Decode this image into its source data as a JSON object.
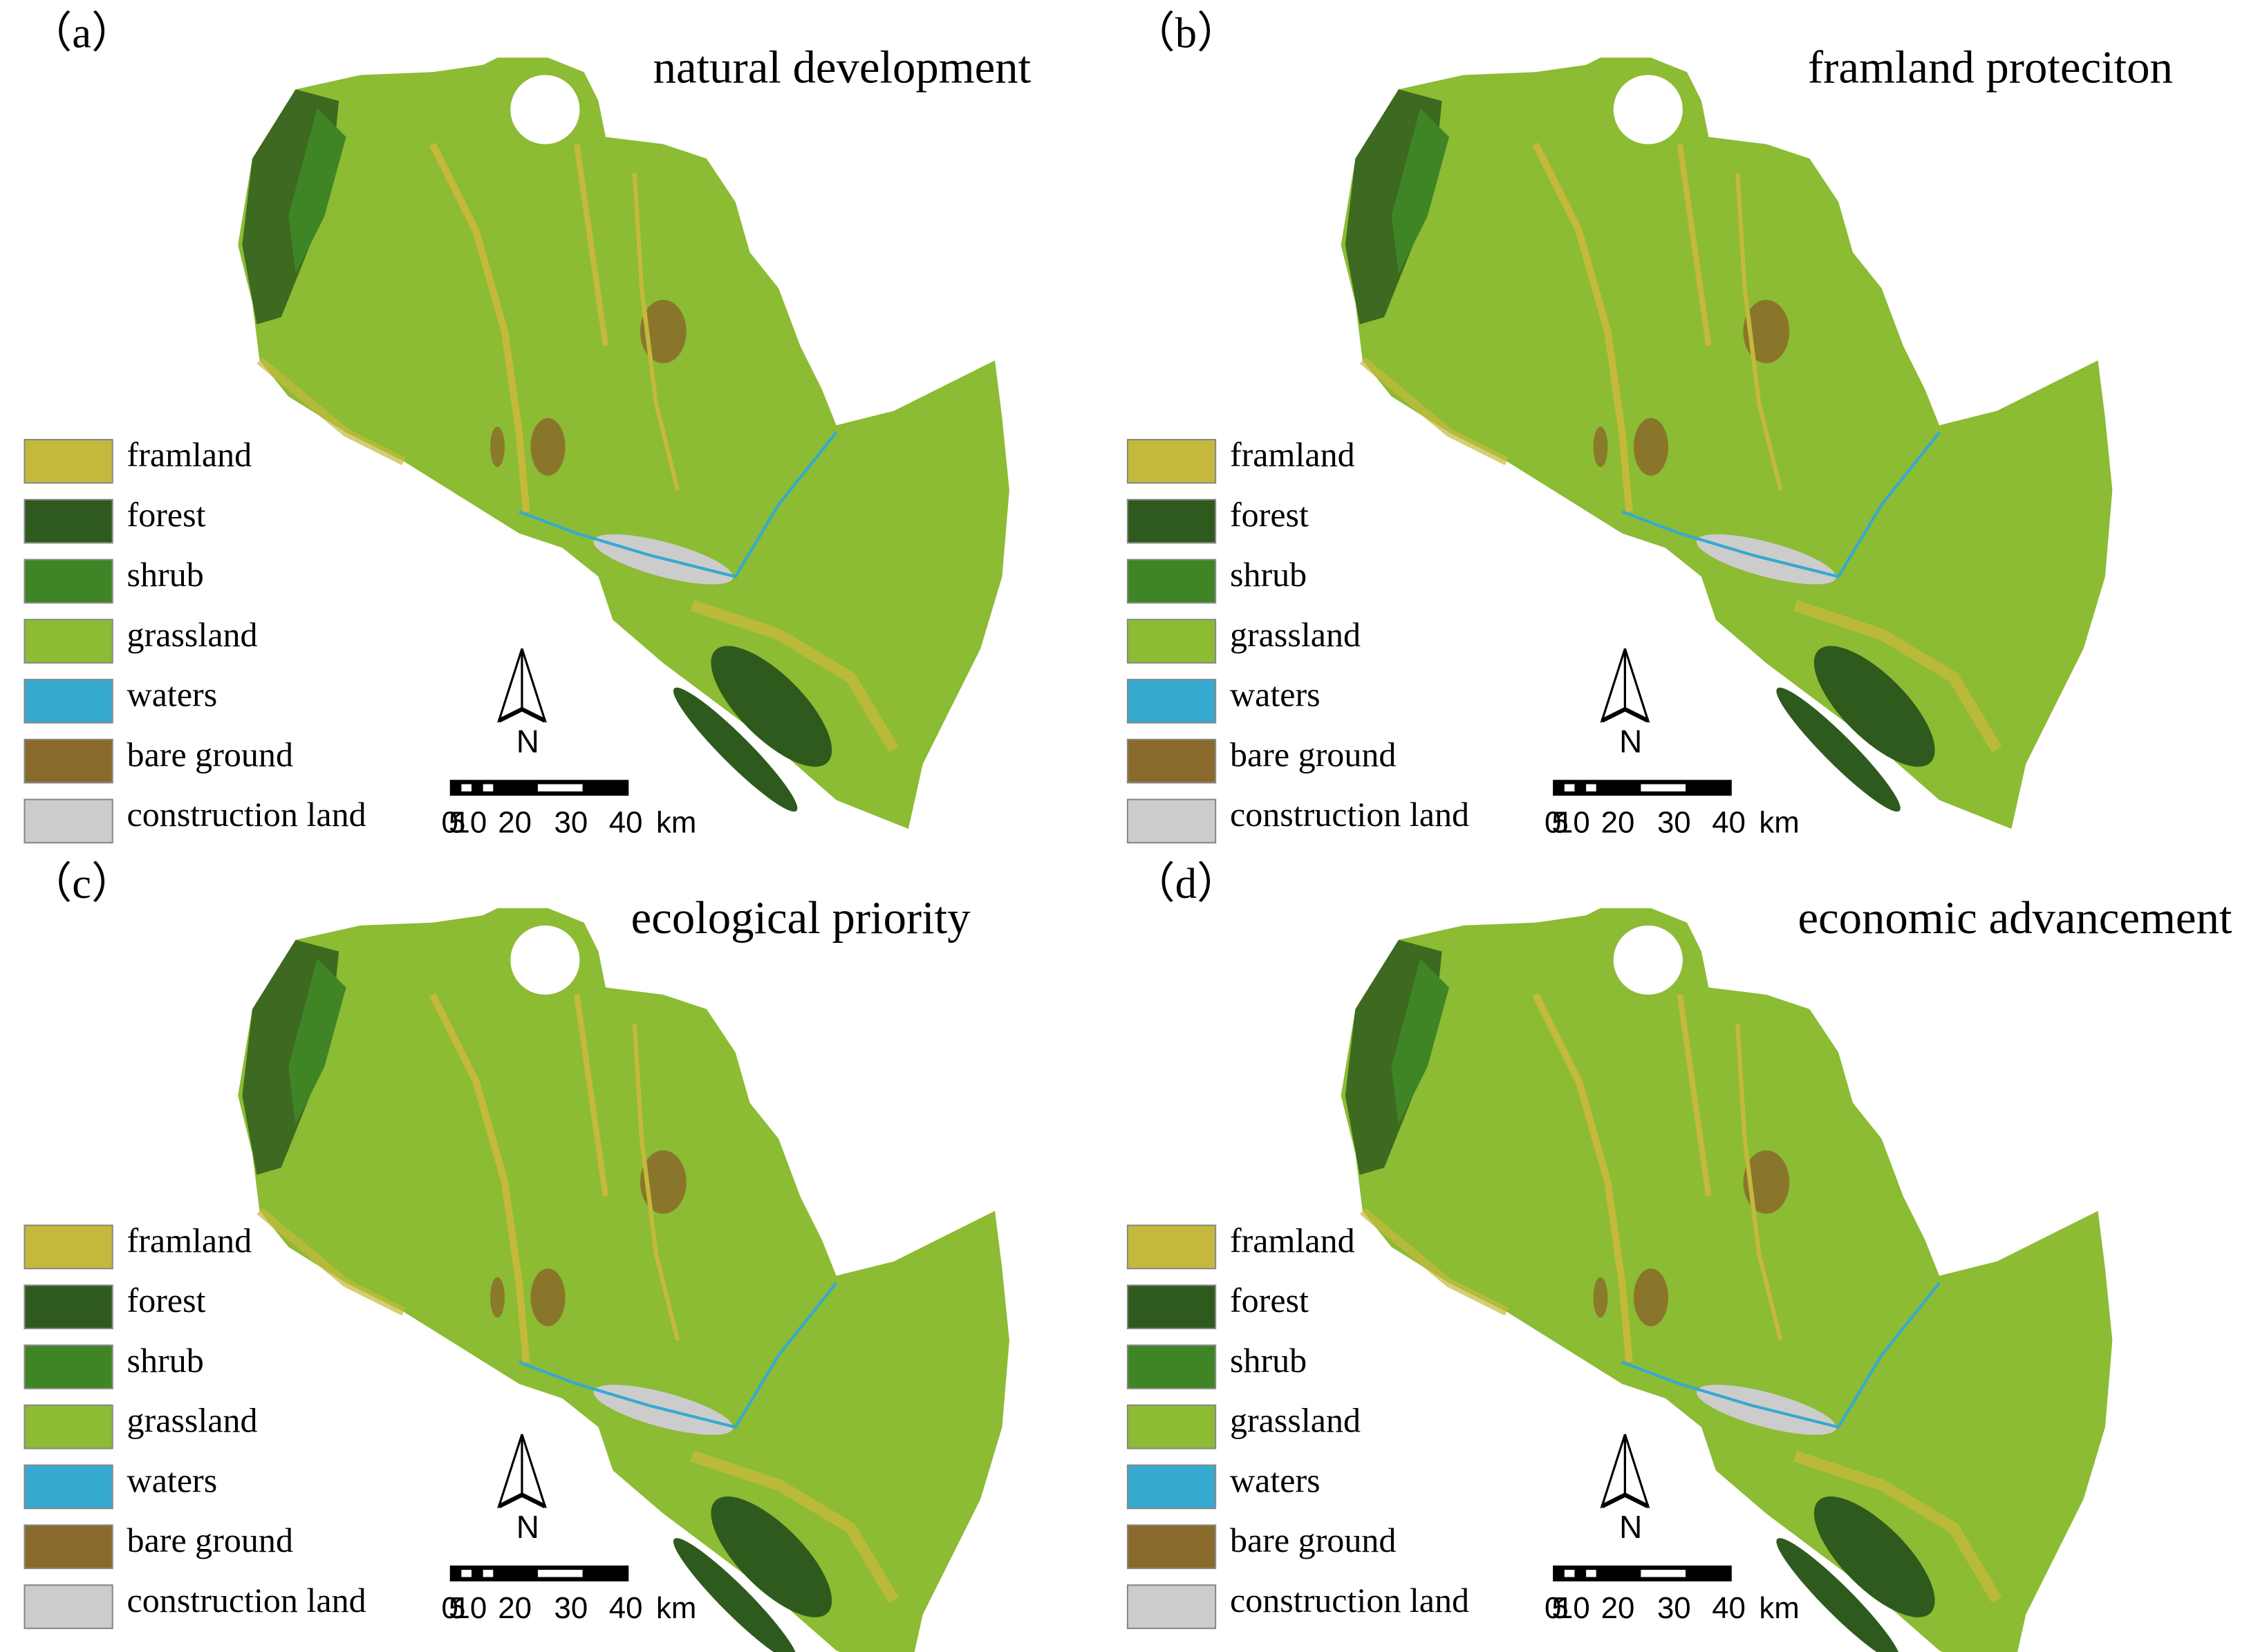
{
  "panels": [
    {
      "label": "（a）",
      "title": "natural development"
    },
    {
      "label": "（b）",
      "title": "framland proteciton"
    },
    {
      "label": "（c）",
      "title": "ecological priority"
    },
    {
      "label": "（d）",
      "title": "economic advancement"
    }
  ],
  "legend": [
    {
      "name": "framland",
      "color": "#c4b93c"
    },
    {
      "name": "forest",
      "color": "#2f5a1d"
    },
    {
      "name": "shrub",
      "color": "#3f8526"
    },
    {
      "name": "grassland",
      "color": "#8cbb34"
    },
    {
      "name": "waters",
      "color": "#36a9d0"
    },
    {
      "name": "bare ground",
      "color": "#8a6a2a"
    },
    {
      "name": "construction land",
      "color": "#cccccc"
    }
  ],
  "north_label": "N",
  "scale_bar": {
    "labels": [
      "0",
      "5",
      "10",
      "20",
      "30",
      "40"
    ],
    "unit": "km"
  }
}
